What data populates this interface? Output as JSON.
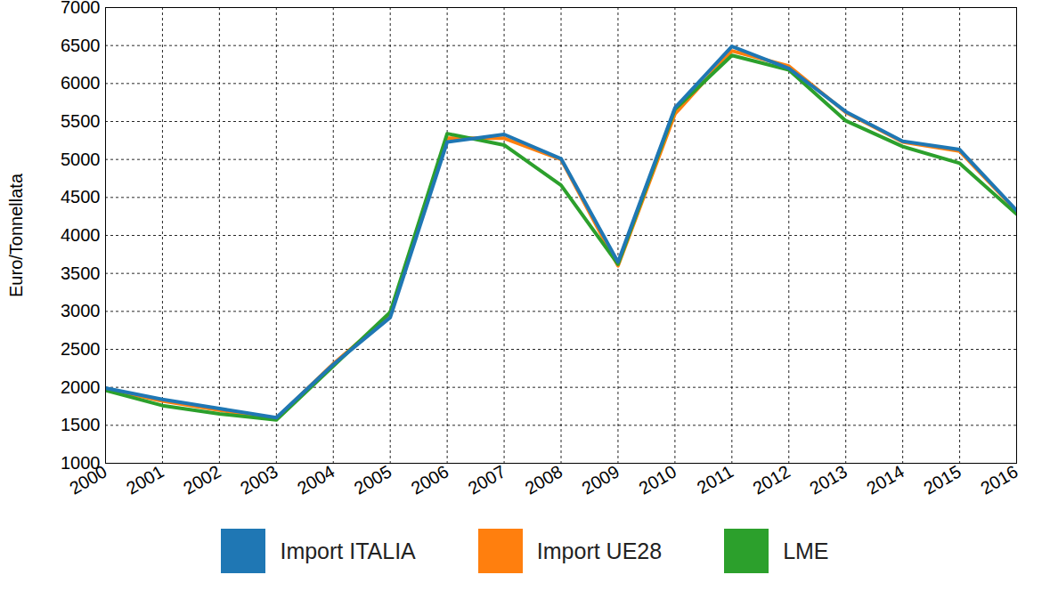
{
  "chart_data": {
    "type": "line",
    "y_label": "Euro/Tonnellata",
    "x": [
      2000,
      2001,
      2002,
      2003,
      2004,
      2005,
      2006,
      2007,
      2008,
      2009,
      2010,
      2011,
      2012,
      2013,
      2014,
      2015,
      2016
    ],
    "series": [
      {
        "name": "Import UE28",
        "color": "#ff7f0e",
        "values": [
          1980,
          1820,
          1700,
          1590,
          2310,
          2950,
          5280,
          5280,
          5000,
          3600,
          5600,
          6430,
          6230,
          5620,
          5230,
          5110,
          4320
        ]
      },
      {
        "name": "LME",
        "color": "#2ca02c",
        "values": [
          1960,
          1760,
          1650,
          1570,
          2280,
          2990,
          5340,
          5190,
          4660,
          3620,
          5660,
          6370,
          6180,
          5510,
          5170,
          4950,
          4280
        ]
      },
      {
        "name": "Import ITALIA",
        "color": "#1f77b4",
        "values": [
          1990,
          1840,
          1720,
          1600,
          2300,
          2920,
          5230,
          5330,
          5010,
          3650,
          5680,
          6490,
          6200,
          5630,
          5240,
          5130,
          4330
        ]
      }
    ],
    "legend_order": [
      "Import ITALIA",
      "Import UE28",
      "LME"
    ],
    "xlim": [
      2000,
      2016
    ],
    "xticks": [
      2000,
      2001,
      2002,
      2003,
      2004,
      2005,
      2006,
      2007,
      2008,
      2009,
      2010,
      2011,
      2012,
      2013,
      2014,
      2015,
      2016
    ],
    "ylim": [
      1000,
      7000
    ],
    "yticks": [
      1000,
      1500,
      2000,
      2500,
      3000,
      3500,
      4000,
      4500,
      5000,
      5500,
      6000,
      6500,
      7000
    ],
    "grid": true,
    "legend": "bottom"
  }
}
